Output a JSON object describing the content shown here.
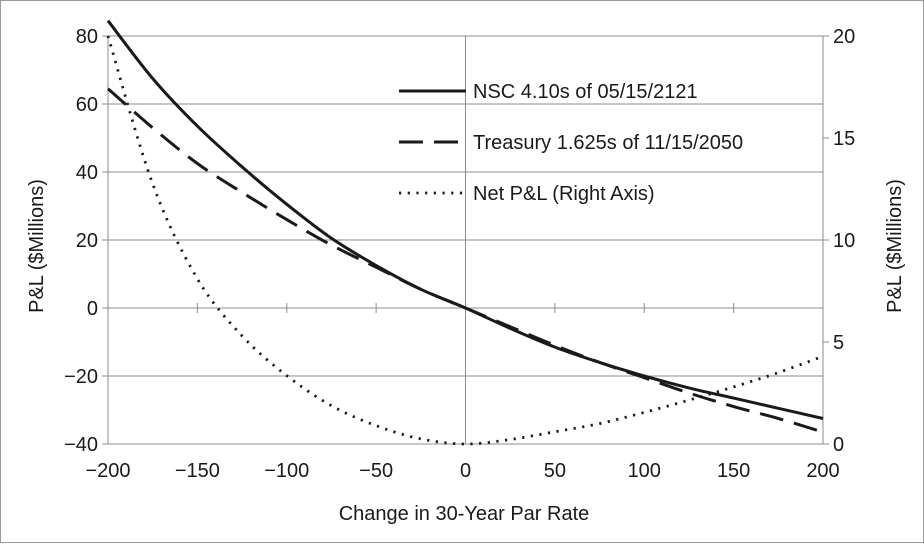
{
  "chart_data": {
    "type": "line",
    "xlabel": "Change in 30-Year Par Rate",
    "ylabel_left": "P&L ($Millions)",
    "ylabel_right": "P&L ($Millions)",
    "xlim": [
      -200,
      200
    ],
    "ylim_left": [
      -40,
      80
    ],
    "ylim_right": [
      0,
      20
    ],
    "x_ticks": [
      -200,
      -150,
      -100,
      -50,
      0,
      50,
      100,
      150,
      200
    ],
    "x_tick_labels": [
      "−200",
      "−150",
      "−100",
      "−50",
      "0",
      "50",
      "100",
      "150",
      "200"
    ],
    "y_left_ticks": [
      -40,
      -20,
      0,
      20,
      40,
      60,
      80
    ],
    "y_left_tick_labels": [
      "−40",
      "−20",
      "0",
      "20",
      "40",
      "60",
      "80"
    ],
    "y_right_ticks": [
      0,
      5,
      10,
      15,
      20
    ],
    "y_right_tick_labels": [
      "0",
      "5",
      "10",
      "15",
      "20"
    ],
    "grid": true,
    "legend_position": "top-right",
    "x": [
      -200,
      -175,
      -150,
      -125,
      -100,
      -75,
      -50,
      -25,
      0,
      25,
      50,
      75,
      100,
      125,
      150,
      175,
      200
    ],
    "series": [
      {
        "name": "NSC 4.10s of 05/15/2121",
        "axis": "left",
        "style": "solid",
        "values": [
          84.5,
          67.5,
          53.5,
          41.5,
          30.5,
          20.5,
          12.5,
          5.5,
          0,
          -6,
          -11.5,
          -16,
          -20,
          -23.5,
          -26.5,
          -29.5,
          -32.5
        ]
      },
      {
        "name": "Treasury 1.625s of 11/15/2050",
        "axis": "left",
        "style": "dashed",
        "values": [
          64.5,
          53,
          42.5,
          34,
          26,
          18.5,
          12,
          5.5,
          0,
          -5.5,
          -11,
          -16,
          -20.5,
          -25,
          -29,
          -32.5,
          -36.5
        ]
      },
      {
        "name": "Net P&L (Right Axis)",
        "axis": "right",
        "style": "dotted",
        "values": [
          20,
          12.75,
          8.1,
          5.3,
          3.35,
          1.88,
          0.9,
          0.25,
          0,
          0.22,
          0.6,
          1.0,
          1.55,
          2.15,
          2.8,
          3.5,
          4.3
        ]
      }
    ]
  }
}
